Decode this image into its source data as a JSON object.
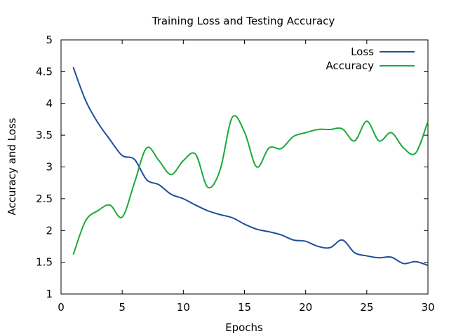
{
  "chart_data": {
    "type": "line",
    "title": "Training Loss and Testing Accuracy",
    "xlabel": "Epochs",
    "ylabel": "Accuracy and Loss",
    "xlim": [
      0,
      30
    ],
    "ylim": [
      1,
      5
    ],
    "xticks": [
      0,
      5,
      10,
      15,
      20,
      25,
      30
    ],
    "yticks": [
      1,
      1.5,
      2,
      2.5,
      3,
      3.5,
      4,
      4.5,
      5
    ],
    "ytick_labels": [
      "1",
      "1.5",
      "2",
      "2.5",
      "3",
      "3.5",
      "4",
      "4.5",
      "5"
    ],
    "grid": false,
    "legend_position": "top-right",
    "series": [
      {
        "name": "Loss",
        "color": "#1f4e9c",
        "points": [
          [
            1,
            4.57
          ],
          [
            2,
            4.05
          ],
          [
            3,
            3.7
          ],
          [
            4,
            3.43
          ],
          [
            5,
            3.18
          ],
          [
            6,
            3.12
          ],
          [
            7,
            2.8
          ],
          [
            8,
            2.72
          ],
          [
            9,
            2.57
          ],
          [
            10,
            2.5
          ],
          [
            11,
            2.4
          ],
          [
            12,
            2.31
          ],
          [
            13,
            2.25
          ],
          [
            14,
            2.2
          ],
          [
            15,
            2.1
          ],
          [
            16,
            2.02
          ],
          [
            17,
            1.98
          ],
          [
            18,
            1.93
          ],
          [
            19,
            1.85
          ],
          [
            20,
            1.83
          ],
          [
            21,
            1.75
          ],
          [
            22,
            1.73
          ],
          [
            23,
            1.85
          ],
          [
            24,
            1.65
          ],
          [
            25,
            1.6
          ],
          [
            26,
            1.57
          ],
          [
            27,
            1.58
          ],
          [
            28,
            1.48
          ],
          [
            29,
            1.51
          ],
          [
            30,
            1.45
          ]
        ]
      },
      {
        "name": "Accuracy",
        "color": "#1aaa3a",
        "points": [
          [
            1,
            1.62
          ],
          [
            2,
            2.15
          ],
          [
            3,
            2.31
          ],
          [
            4,
            2.4
          ],
          [
            5,
            2.21
          ],
          [
            6,
            2.75
          ],
          [
            7,
            3.3
          ],
          [
            8,
            3.1
          ],
          [
            9,
            2.88
          ],
          [
            10,
            3.1
          ],
          [
            11,
            3.2
          ],
          [
            12,
            2.68
          ],
          [
            13,
            2.95
          ],
          [
            14,
            3.78
          ],
          [
            15,
            3.55
          ],
          [
            16,
            3.0
          ],
          [
            17,
            3.3
          ],
          [
            18,
            3.29
          ],
          [
            19,
            3.48
          ],
          [
            20,
            3.54
          ],
          [
            21,
            3.59
          ],
          [
            22,
            3.59
          ],
          [
            23,
            3.6
          ],
          [
            24,
            3.41
          ],
          [
            25,
            3.72
          ],
          [
            26,
            3.41
          ],
          [
            27,
            3.54
          ],
          [
            28,
            3.3
          ],
          [
            29,
            3.22
          ],
          [
            30,
            3.72
          ]
        ]
      }
    ]
  }
}
